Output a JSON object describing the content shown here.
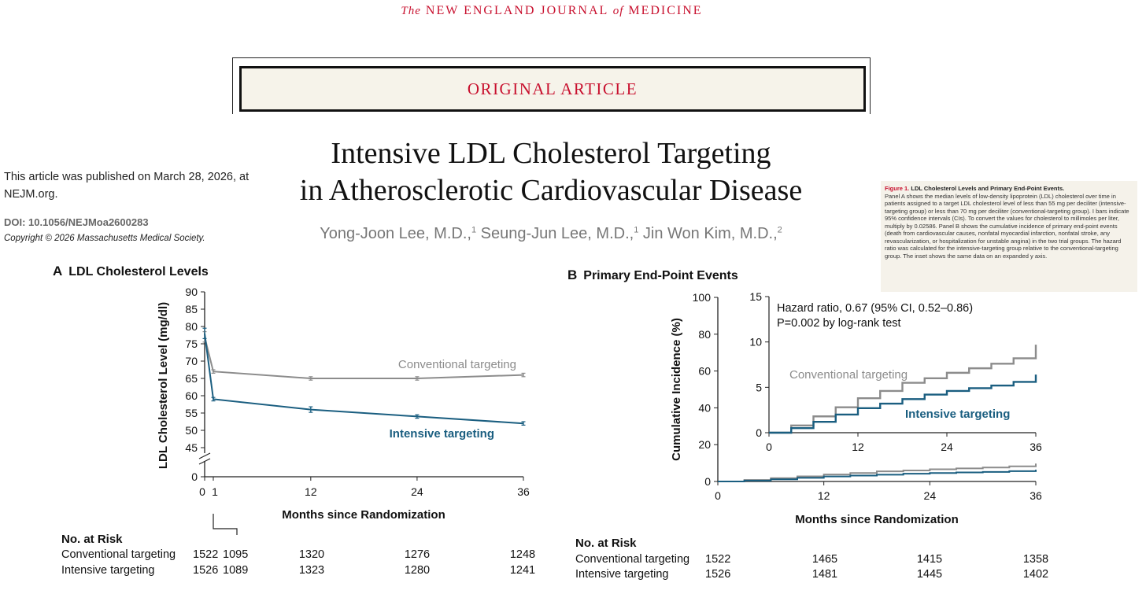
{
  "header": {
    "journal_prefix": "The",
    "journal_name": "NEW ENGLAND JOURNAL",
    "journal_of": "of",
    "journal_suffix": "MEDICINE",
    "banner": "ORIGINAL ARTICLE"
  },
  "article": {
    "title_line1": "Intensive LDL Cholesterol Targeting",
    "title_line2": "in Atherosclerotic Cardiovascular Disease",
    "authors": [
      {
        "name": "Yong-Joon Lee, M.D.,",
        "aff": "1"
      },
      {
        "name": "Seung-Jun Lee, M.D.,",
        "aff": "1"
      },
      {
        "name": "Jin Won Kim, M.D.,",
        "aff": "2"
      }
    ],
    "published": "This article was published on March 28, 2026, at NEJM.org.",
    "doi": "DOI: 10.1056/NEJMoa2600283",
    "copyright": "Copyright © 2026 Massachusetts Medical Society."
  },
  "caption": {
    "title": "Figure 1.",
    "subtitle": "LDL Cholesterol Levels and Primary End-Point Events.",
    "body": "Panel A shows the median levels of low-density lipoprotein (LDL) cholesterol over time in patients assigned to a target LDL cholesterol level of less than 55 mg per deciliter (intensive-targeting group) or less than 70 mg per deciliter (conventional-targeting group). I bars indicate 95% confidence intervals (CIs). To convert the values for cholesterol to millimoles per liter, multiply by 0.02586. Panel B shows the cumulative incidence of primary end-point events (death from cardiovascular causes, nonfatal myocardial infarction, nonfatal stroke, any revascularization, or hospitalization for unstable angina) in the two trial groups. The hazard ratio was calculated for the intensive-targeting group relative to the conventional-targeting group. The inset shows the same data on an expanded y axis."
  },
  "colors": {
    "conventional": "#8c8c8c",
    "intensive": "#1a5e80",
    "accent_red": "#c8102e"
  },
  "chart_data": [
    {
      "panel": "A",
      "type": "line",
      "title": "LDL Cholesterol Levels",
      "xlabel": "Months since Randomization",
      "ylabel": "LDL Cholesterol Level (mg/dl)",
      "x_ticks": [
        "0",
        "1",
        "12",
        "24",
        "36"
      ],
      "y_ticks": [
        "0",
        "45",
        "50",
        "55",
        "60",
        "65",
        "70",
        "75",
        "80",
        "85",
        "90"
      ],
      "ylim": [
        45,
        90
      ],
      "axis_break": true,
      "series": [
        {
          "name": "Conventional targeting",
          "x": [
            0,
            1,
            12,
            24,
            36
          ],
          "values": [
            77,
            67,
            65,
            65,
            66
          ],
          "ci": [
            1.5,
            0.5,
            0.5,
            0.5,
            0.5
          ]
        },
        {
          "name": "Intensive targeting",
          "x": [
            0,
            1,
            12,
            24,
            36
          ],
          "values": [
            78,
            59,
            56,
            54,
            52
          ],
          "ci": [
            1.5,
            0.5,
            0.8,
            0.5,
            0.5
          ]
        }
      ],
      "risk_table": {
        "heading": "No. at Risk",
        "rows": [
          {
            "label": "Conventional targeting",
            "values": [
              "1522",
              "1095",
              "1320",
              "1276",
              "1248"
            ]
          },
          {
            "label": "Intensive targeting",
            "values": [
              "1526",
              "1089",
              "1323",
              "1280",
              "1241"
            ]
          }
        ]
      }
    },
    {
      "panel": "B",
      "type": "line",
      "title": "Primary End-Point Events",
      "xlabel": "Months since Randomization",
      "ylabel": "Cumulative Incidence (%)",
      "x_ticks": [
        "0",
        "12",
        "24",
        "36"
      ],
      "y_ticks": [
        "0",
        "20",
        "40",
        "60",
        "80",
        "100"
      ],
      "ylim": [
        0,
        100
      ],
      "xlim": [
        0,
        36
      ],
      "series": [
        {
          "name": "Conventional targeting",
          "x": [
            0,
            3,
            6,
            9,
            12,
            15,
            18,
            21,
            24,
            27,
            30,
            33,
            36
          ],
          "values": [
            0,
            0.8,
            1.8,
            2.8,
            3.8,
            4.6,
            5.5,
            6.0,
            6.6,
            7.1,
            7.6,
            8.2,
            9.7
          ]
        },
        {
          "name": "Intensive targeting",
          "x": [
            0,
            3,
            6,
            9,
            12,
            15,
            18,
            21,
            24,
            27,
            30,
            33,
            36
          ],
          "values": [
            0,
            0.5,
            1.2,
            2.0,
            2.7,
            3.2,
            3.7,
            4.2,
            4.6,
            4.9,
            5.2,
            5.6,
            6.4
          ]
        }
      ],
      "inset": {
        "ylim": [
          0,
          15
        ],
        "y_ticks": [
          "0",
          "5",
          "10",
          "15"
        ],
        "x_ticks": [
          "0",
          "12",
          "24",
          "36"
        ],
        "hazard_ratio": "Hazard ratio, 0.67 (95% CI, 0.52–0.86)",
        "p_value": "P=0.002 by log-rank test"
      },
      "risk_table": {
        "heading": "No. at Risk",
        "rows": [
          {
            "label": "Conventional targeting",
            "values": [
              "1522",
              "1465",
              "1415",
              "1358"
            ]
          },
          {
            "label": "Intensive targeting",
            "values": [
              "1526",
              "1481",
              "1445",
              "1402"
            ]
          }
        ]
      }
    }
  ]
}
